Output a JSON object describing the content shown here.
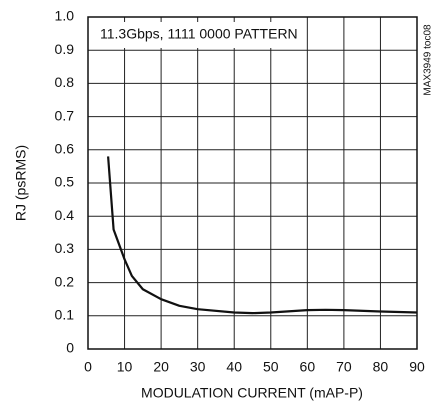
{
  "chart_data": {
    "type": "line",
    "annotation": "11.3Gbps, 1111 0000 PATTERN",
    "side_note": "MAX3949 toc08",
    "x_label": "MODULATION CURRENT (mAP-P)",
    "y_label": "RJ (psRMS)",
    "x": [
      5.5,
      7,
      8,
      10,
      12,
      15,
      20,
      25,
      30,
      40,
      45,
      50,
      60,
      65,
      70,
      80,
      90
    ],
    "series": [
      {
        "name": "RJ",
        "color": "#111111",
        "values": [
          0.58,
          0.36,
          0.33,
          0.27,
          0.22,
          0.18,
          0.15,
          0.13,
          0.12,
          0.11,
          0.108,
          0.11,
          0.117,
          0.118,
          0.117,
          0.113,
          0.11
        ]
      }
    ],
    "xlim": [
      0,
      90
    ],
    "ylim": [
      0,
      1
    ],
    "xticks": [
      0,
      10,
      20,
      30,
      40,
      50,
      60,
      70,
      80,
      90
    ],
    "yticks": [
      0,
      0.1,
      0.2,
      0.3,
      0.4,
      0.5,
      0.6,
      0.7,
      0.8,
      0.9,
      {
        "value": 1,
        "label": "1.0"
      }
    ],
    "grid": true
  }
}
